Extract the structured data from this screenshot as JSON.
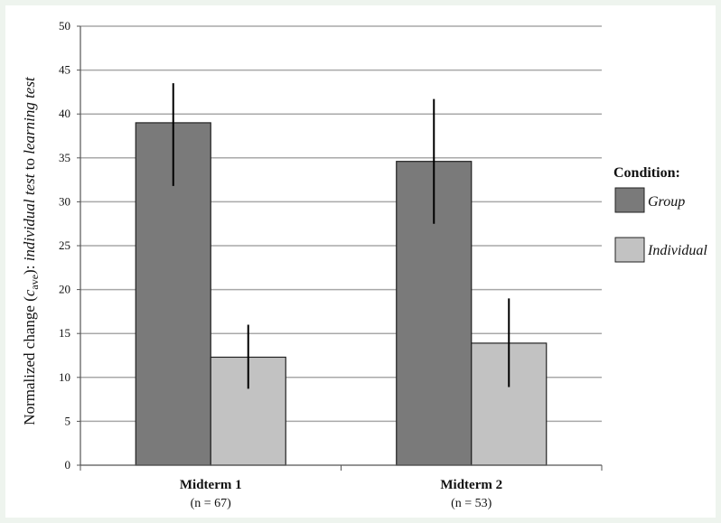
{
  "chart_data": {
    "type": "bar",
    "ylabel_parts": {
      "prefix": "Normalized change (",
      "var": "c",
      "sub": "ave",
      "middle": "): ",
      "italic1": "individual test",
      "connector": " to ",
      "italic2": "learning test"
    },
    "ylim": [
      0,
      50
    ],
    "yticks": [
      "0",
      "5",
      "10",
      "15",
      "20",
      "25",
      "30",
      "35",
      "40",
      "45",
      "50"
    ],
    "grid": true,
    "categories": [
      "Midterm 1",
      "Midterm 2"
    ],
    "category_subtitles": [
      "(n = 67)",
      "(n = 53)"
    ],
    "series": [
      {
        "name": "Group",
        "color": "#7a7a7a",
        "values": [
          39,
          34.6
        ],
        "error_low": [
          31.8,
          27.5
        ],
        "error_high": [
          43.5,
          41.7
        ]
      },
      {
        "name": "Individual",
        "color": "#c2c2c2",
        "values": [
          12.3,
          13.9
        ],
        "error_low": [
          8.7,
          8.9
        ],
        "error_high": [
          16,
          19
        ]
      }
    ],
    "legend": {
      "title": "Condition:",
      "position": "right"
    }
  }
}
